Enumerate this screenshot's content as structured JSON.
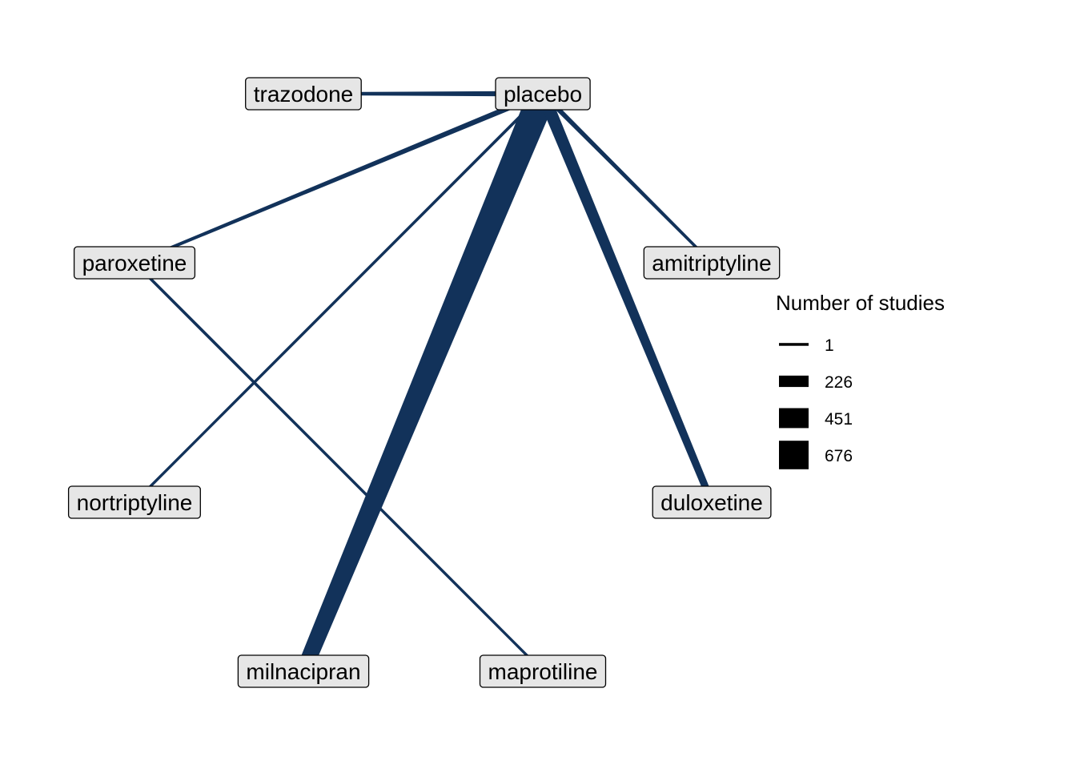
{
  "network": {
    "edge_color": "#12325a",
    "nodes": [
      {
        "id": "placebo",
        "label": "placebo"
      },
      {
        "id": "trazodone",
        "label": "trazodone"
      },
      {
        "id": "paroxetine",
        "label": "paroxetine"
      },
      {
        "id": "amitriptyline",
        "label": "amitriptyline"
      },
      {
        "id": "nortriptyline",
        "label": "nortriptyline"
      },
      {
        "id": "duloxetine",
        "label": "duloxetine"
      },
      {
        "id": "milnacipran",
        "label": "milnacipran"
      },
      {
        "id": "maprotiline",
        "label": "maprotiline"
      }
    ],
    "edges": [
      {
        "from": "placebo",
        "to": "trazodone",
        "studies": 70
      },
      {
        "from": "placebo",
        "to": "paroxetine",
        "studies": 70
      },
      {
        "from": "placebo",
        "to": "nortriptyline",
        "studies": 1
      },
      {
        "from": "placebo",
        "to": "milnacipran",
        "studies": 676
      },
      {
        "from": "placebo",
        "to": "duloxetine",
        "studies": 260
      },
      {
        "from": "placebo",
        "to": "amitriptyline",
        "studies": 60
      },
      {
        "from": "paroxetine",
        "to": "maprotiline",
        "studies": 1
      }
    ]
  },
  "legend": {
    "title": "Number of studies",
    "items": [
      {
        "label": "1",
        "value": 1
      },
      {
        "label": "226",
        "value": 226
      },
      {
        "label": "451",
        "value": 451
      },
      {
        "label": "676",
        "value": 676
      }
    ]
  }
}
